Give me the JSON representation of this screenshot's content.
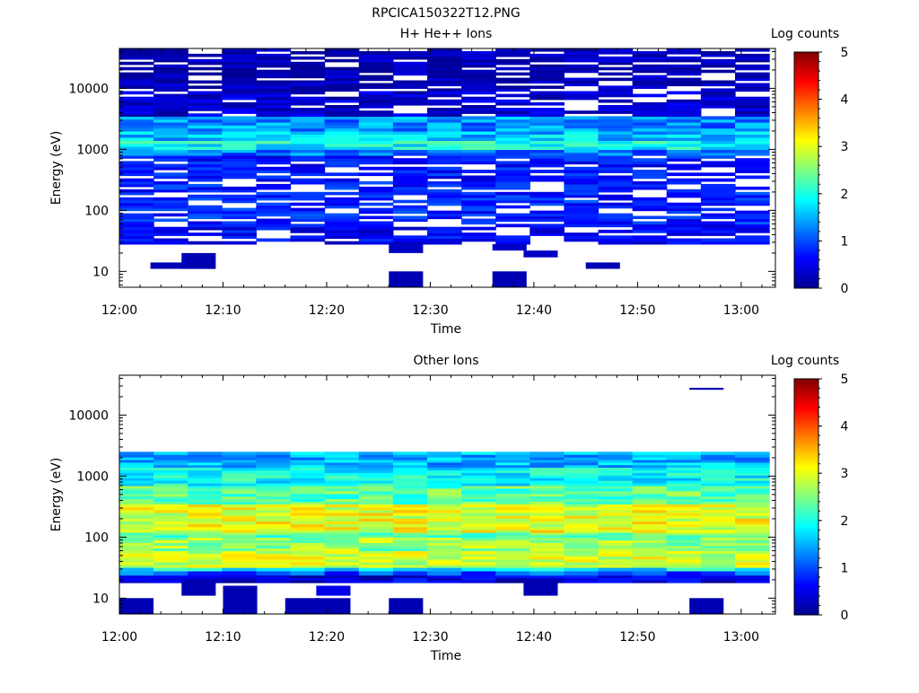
{
  "figure": {
    "title": "RPCICA150322T12.PNG"
  },
  "chart_data": [
    {
      "type": "heatmap",
      "title": "H+ He++ Ions",
      "xlabel": "Time",
      "ylabel": "Energy (eV)",
      "colorbar_label": "Log counts",
      "x_ticks": [
        "12:00",
        "12:10",
        "12:20",
        "12:30",
        "12:40",
        "12:50",
        "13:00"
      ],
      "y_ticks": [
        "10",
        "100",
        "1000",
        "10000"
      ],
      "y_scale": "log",
      "y_range_eV": [
        5.5,
        45000
      ],
      "x_range_min": [
        0,
        63.3
      ],
      "colorbar_ticks": [
        "0",
        "1",
        "2",
        "3",
        "4",
        "5"
      ],
      "colorbar_range": [
        0,
        5
      ],
      "time_bins": [
        "12:00",
        "12:03",
        "12:06",
        "12:10",
        "12:13",
        "12:16",
        "12:19",
        "12:23",
        "12:26",
        "12:29",
        "12:32",
        "12:36",
        "12:39",
        "12:42",
        "12:45",
        "12:49",
        "12:52",
        "12:55",
        "12:58"
      ],
      "cells": [
        {
          "t": "12:03",
          "e_min": 11,
          "e_max": 14,
          "v": 0.2
        },
        {
          "t": "12:06",
          "e_min": 11,
          "e_max": 20,
          "v": 0.2
        },
        {
          "t": "12:26",
          "e_min": 5.5,
          "e_max": 10,
          "v": 0.2
        },
        {
          "t": "12:26",
          "e_min": 20,
          "e_max": 30,
          "v": 0.3
        },
        {
          "t": "12:36",
          "e_min": 5.5,
          "e_max": 10,
          "v": 0.2
        },
        {
          "t": "12:36",
          "e_min": 22,
          "e_max": 28,
          "v": 0.3
        },
        {
          "t": "12:39",
          "e_min": 17,
          "e_max": 22,
          "v": 0.3
        },
        {
          "t": "12:45",
          "e_min": 11,
          "e_max": 14,
          "v": 0.2
        }
      ],
      "profile": {
        "note": "typical log-count level vs energy across all time bins",
        "bands": [
          {
            "e_min": 28,
            "e_max": 60,
            "v": 0.7
          },
          {
            "e_min": 60,
            "e_max": 300,
            "v": 0.9
          },
          {
            "e_min": 300,
            "e_max": 800,
            "v": 0.8
          },
          {
            "e_min": 800,
            "e_max": 1000,
            "v": 1.2
          },
          {
            "e_min": 1000,
            "e_max": 1400,
            "v": 1.9
          },
          {
            "e_min": 1400,
            "e_max": 2000,
            "v": 1.6
          },
          {
            "e_min": 2000,
            "e_max": 3500,
            "v": 1.3
          },
          {
            "e_min": 3500,
            "e_max": 10000,
            "v": 0.5
          },
          {
            "e_min": 10000,
            "e_max": 45000,
            "v": 0.3
          }
        ]
      }
    },
    {
      "type": "heatmap",
      "title": "Other Ions",
      "xlabel": "Time",
      "ylabel": "Energy (eV)",
      "colorbar_label": "Log counts",
      "x_ticks": [
        "12:00",
        "12:10",
        "12:20",
        "12:30",
        "12:40",
        "12:50",
        "13:00"
      ],
      "y_ticks": [
        "10",
        "100",
        "1000",
        "10000"
      ],
      "y_scale": "log",
      "y_range_eV": [
        5.5,
        45000
      ],
      "x_range_min": [
        0,
        63.3
      ],
      "colorbar_ticks": [
        "0",
        "1",
        "2",
        "3",
        "4",
        "5"
      ],
      "colorbar_range": [
        0,
        5
      ],
      "cells": [
        {
          "t": "12:55",
          "e_min": 26000,
          "e_max": 28000,
          "v": 0.2
        },
        {
          "t": "12:00",
          "e_min": 5.5,
          "e_max": 10,
          "v": 0.2
        },
        {
          "t": "12:06",
          "e_min": 11,
          "e_max": 20,
          "v": 0.2
        },
        {
          "t": "12:10",
          "e_min": 5.5,
          "e_max": 16,
          "v": 0.2
        },
        {
          "t": "12:16",
          "e_min": 5.5,
          "e_max": 10,
          "v": 0.2
        },
        {
          "t": "12:19",
          "e_min": 5.5,
          "e_max": 10,
          "v": 0.2
        },
        {
          "t": "12:19",
          "e_min": 11,
          "e_max": 16,
          "v": 0.5
        },
        {
          "t": "12:26",
          "e_min": 5.5,
          "e_max": 10,
          "v": 0.2
        },
        {
          "t": "12:39",
          "e_min": 11,
          "e_max": 20,
          "v": 0.2
        },
        {
          "t": "12:55",
          "e_min": 5.5,
          "e_max": 10,
          "v": 0.2
        }
      ],
      "profile": {
        "note": "typical log-count level vs energy across all time bins",
        "bands": [
          {
            "e_min": 18,
            "e_max": 24,
            "v": 0.4
          },
          {
            "e_min": 24,
            "e_max": 28,
            "v": 1.0
          },
          {
            "e_min": 28,
            "e_max": 32,
            "v": 1.8
          },
          {
            "e_min": 32,
            "e_max": 60,
            "v": 2.9
          },
          {
            "e_min": 60,
            "e_max": 100,
            "v": 2.6
          },
          {
            "e_min": 100,
            "e_max": 120,
            "v": 2.3
          },
          {
            "e_min": 120,
            "e_max": 350,
            "v": 3.0
          },
          {
            "e_min": 350,
            "e_max": 700,
            "v": 2.3
          },
          {
            "e_min": 700,
            "e_max": 1400,
            "v": 1.9
          },
          {
            "e_min": 1400,
            "e_max": 2500,
            "v": 1.5
          }
        ]
      }
    }
  ]
}
